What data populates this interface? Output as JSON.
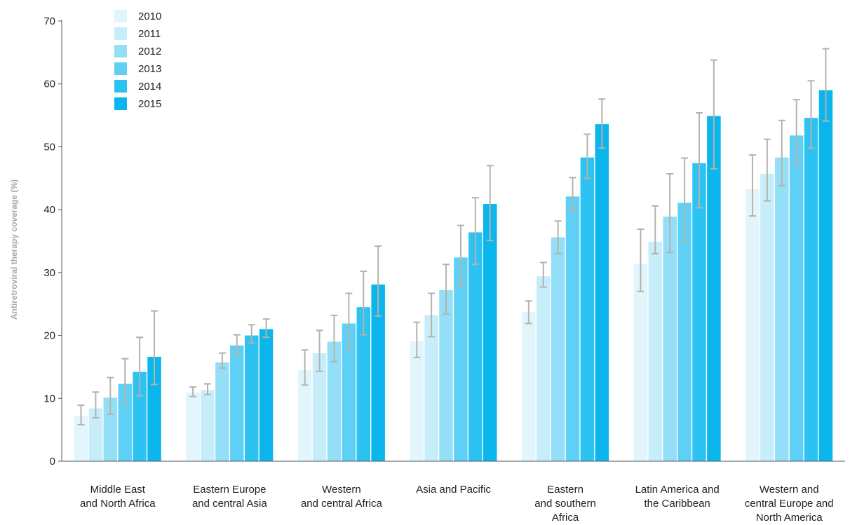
{
  "chart_data": {
    "type": "bar",
    "title": "",
    "xlabel": "",
    "ylabel": "Antiretroviral therapy coverage (%)",
    "ylim": [
      0,
      70
    ],
    "yticks": [
      0,
      10,
      20,
      30,
      40,
      50,
      60,
      70
    ],
    "grid": false,
    "legend_position": "top-left",
    "error_bar_color": "#b5b2ac",
    "categories": [
      [
        "Middle East",
        "and North Africa"
      ],
      [
        "Eastern Europe",
        "and central Asia"
      ],
      [
        "Western",
        "and central Africa"
      ],
      [
        "Asia and Pacific"
      ],
      [
        "Eastern",
        "and southern",
        "Africa"
      ],
      [
        "Latin America and",
        "the Caribbean"
      ],
      [
        "Western and",
        "central Europe and",
        "North America"
      ]
    ],
    "series": [
      {
        "name": "2010",
        "color": "#e2f5fc",
        "values": [
          7.2,
          10.9,
          14.5,
          19.1,
          23.7,
          31.4,
          43.3
        ],
        "lower": [
          5.8,
          10.3,
          12.1,
          16.5,
          21.9,
          27.0,
          39.0
        ],
        "upper": [
          8.9,
          11.8,
          17.7,
          22.1,
          25.5,
          36.9,
          48.7
        ]
      },
      {
        "name": "2011",
        "color": "#c6edf9",
        "values": [
          8.4,
          11.3,
          17.2,
          23.2,
          29.4,
          34.9,
          45.7
        ],
        "lower": [
          6.9,
          10.6,
          14.3,
          19.8,
          27.7,
          33.0,
          41.4
        ],
        "upper": [
          11.0,
          12.3,
          20.8,
          26.7,
          31.6,
          40.6,
          51.2
        ]
      },
      {
        "name": "2012",
        "color": "#93dff7",
        "values": [
          10.1,
          15.7,
          19.0,
          27.2,
          35.6,
          38.9,
          48.3
        ],
        "lower": [
          7.5,
          14.8,
          15.8,
          23.4,
          33.0,
          33.2,
          43.8
        ],
        "upper": [
          13.3,
          17.2,
          23.2,
          31.3,
          38.2,
          45.7,
          54.2
        ]
      },
      {
        "name": "2013",
        "color": "#5fd0f5",
        "values": [
          12.3,
          18.4,
          21.9,
          32.4,
          42.1,
          41.1,
          51.8
        ],
        "lower": [
          9.1,
          17.1,
          17.9,
          27.9,
          39.8,
          35.1,
          47.1
        ],
        "upper": [
          16.3,
          20.1,
          26.7,
          37.5,
          45.1,
          48.2,
          57.5
        ]
      },
      {
        "name": "2014",
        "color": "#2cc3f2",
        "values": [
          14.2,
          20.0,
          24.5,
          36.4,
          48.3,
          47.4,
          54.6
        ],
        "lower": [
          10.4,
          18.8,
          20.1,
          31.3,
          45.0,
          40.3,
          49.8
        ],
        "upper": [
          19.7,
          21.7,
          30.2,
          41.9,
          52.0,
          55.4,
          60.5
        ]
      },
      {
        "name": "2015",
        "color": "#0ab6ec",
        "values": [
          16.6,
          21.0,
          28.1,
          40.9,
          53.6,
          54.9,
          59.0
        ],
        "lower": [
          12.2,
          19.7,
          23.1,
          35.1,
          49.8,
          46.5,
          54.1
        ],
        "upper": [
          23.9,
          22.6,
          34.2,
          47.0,
          57.6,
          63.8,
          65.6
        ]
      }
    ]
  }
}
